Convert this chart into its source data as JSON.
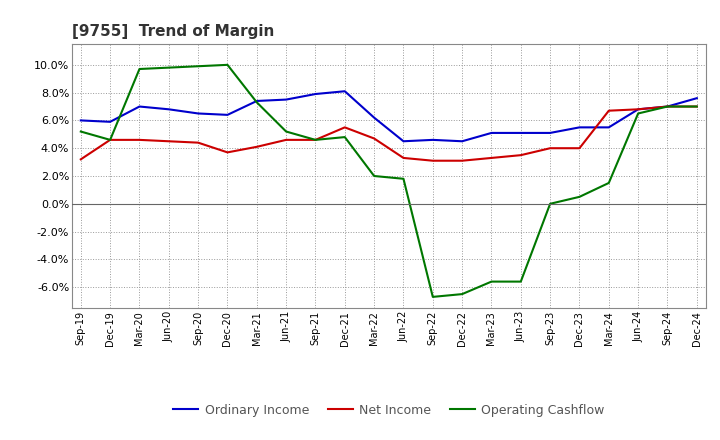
{
  "title": "[9755]  Trend of Margin",
  "x_labels": [
    "Sep-19",
    "Dec-19",
    "Mar-20",
    "Jun-20",
    "Sep-20",
    "Dec-20",
    "Mar-21",
    "Jun-21",
    "Sep-21",
    "Dec-21",
    "Mar-22",
    "Jun-22",
    "Sep-22",
    "Dec-22",
    "Mar-23",
    "Jun-23",
    "Sep-23",
    "Dec-23",
    "Mar-24",
    "Jun-24",
    "Sep-24",
    "Dec-24"
  ],
  "ordinary_income": [
    6.0,
    5.9,
    7.0,
    6.8,
    6.5,
    6.4,
    7.4,
    7.5,
    7.9,
    8.1,
    6.2,
    4.5,
    4.6,
    4.5,
    5.1,
    5.1,
    5.1,
    5.5,
    5.5,
    6.8,
    7.0,
    7.6
  ],
  "net_income": [
    3.2,
    4.6,
    4.6,
    4.5,
    4.4,
    3.7,
    4.1,
    4.6,
    4.6,
    5.5,
    4.7,
    3.3,
    3.1,
    3.1,
    3.3,
    3.5,
    4.0,
    4.0,
    6.7,
    6.8,
    7.0,
    7.0
  ],
  "operating_cashflow": [
    5.2,
    4.6,
    9.7,
    9.8,
    9.9,
    10.0,
    7.3,
    5.2,
    4.6,
    4.8,
    2.0,
    1.8,
    -6.7,
    -6.5,
    -5.6,
    -5.6,
    0.0,
    0.5,
    1.5,
    6.5,
    7.0,
    7.0
  ],
  "ordinary_income_color": "#0000cc",
  "net_income_color": "#cc0000",
  "operating_cashflow_color": "#007700",
  "ylim_min": -7.5,
  "ylim_max": 11.5,
  "yticks": [
    -6.0,
    -4.0,
    -2.0,
    0.0,
    2.0,
    4.0,
    6.0,
    8.0,
    10.0
  ],
  "background_color": "#ffffff",
  "grid_color": "#999999",
  "legend_labels": [
    "Ordinary Income",
    "Net Income",
    "Operating Cashflow"
  ]
}
